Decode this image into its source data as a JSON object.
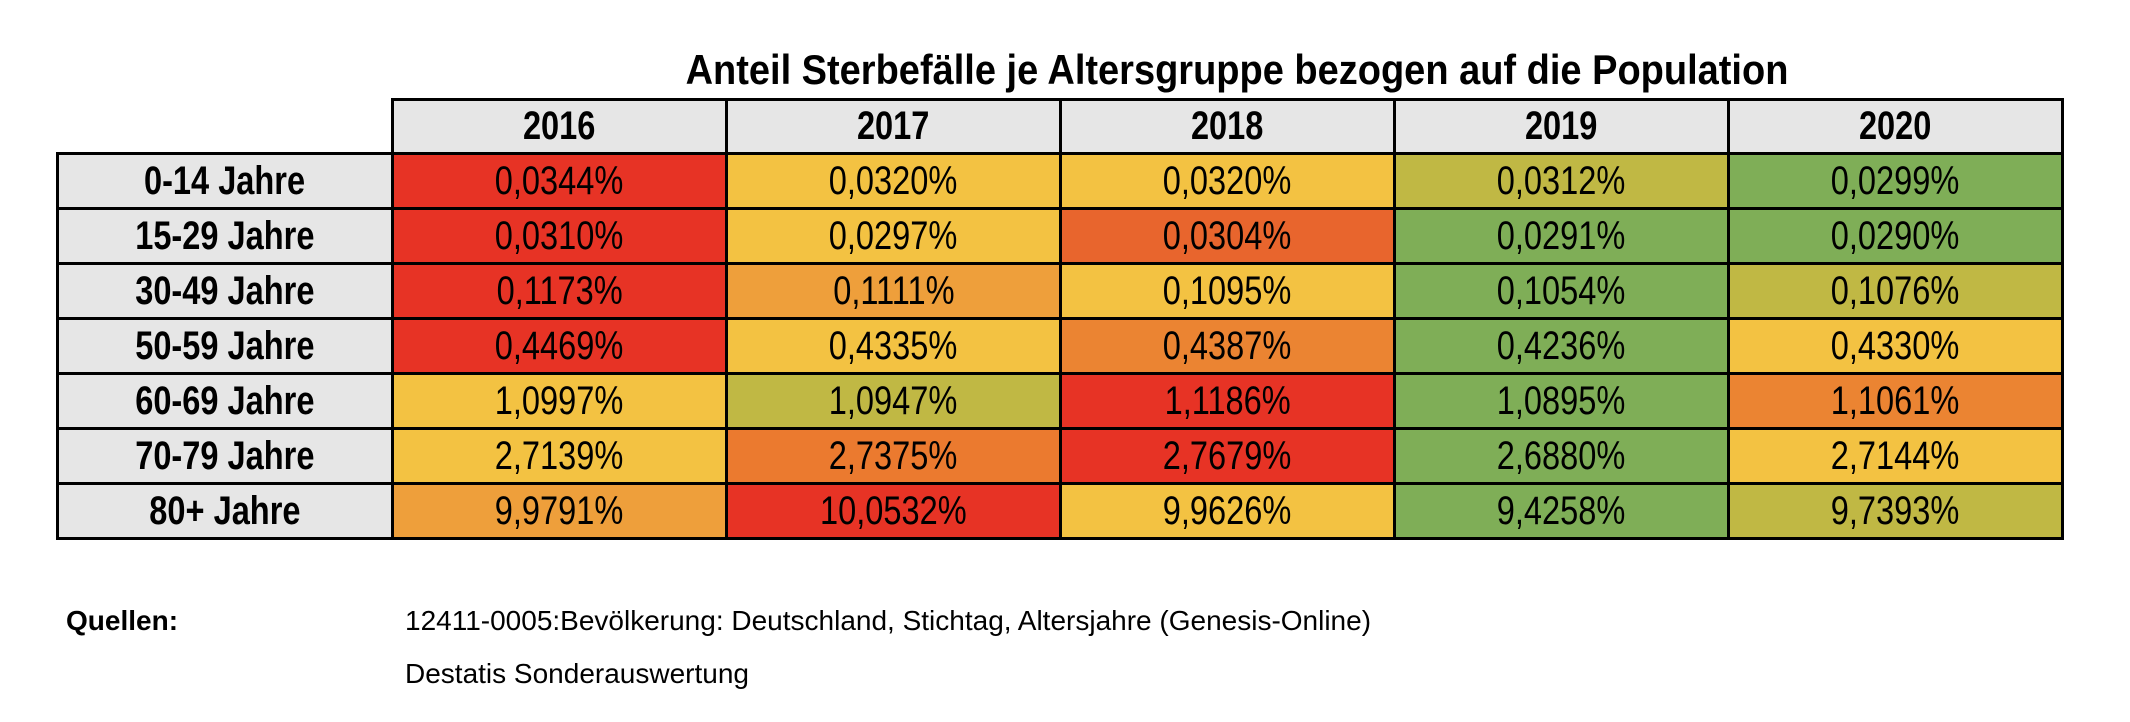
{
  "title": "Anteil Sterbefälle je Altersgruppe bezogen auf die Population",
  "colors": {
    "red": "#e73325",
    "orange": "#e9722e",
    "orange_mid": "#eb8432",
    "orange_light": "#ee9f3b",
    "yellow": "#f3c242",
    "olive": "#c0b844",
    "green": "#7fae57",
    "header": "#e6e6e6"
  },
  "chart_data": {
    "type": "table",
    "title": "Anteil Sterbefälle je Altersgruppe bezogen auf die Population",
    "columns": [
      "2016",
      "2017",
      "2018",
      "2019",
      "2020"
    ],
    "rows": [
      {
        "label": "0-14 Jahre",
        "values": [
          "0,0344%",
          "0,0320%",
          "0,0320%",
          "0,0312%",
          "0,0299%"
        ],
        "colors": [
          "#e73325",
          "#f3c242",
          "#f3c242",
          "#c0b844",
          "#7fae57"
        ]
      },
      {
        "label": "15-29 Jahre",
        "values": [
          "0,0310%",
          "0,0297%",
          "0,0304%",
          "0,0291%",
          "0,0290%"
        ],
        "colors": [
          "#e73325",
          "#f3c242",
          "#e8652d",
          "#7fae57",
          "#7fae57"
        ]
      },
      {
        "label": "30-49 Jahre",
        "values": [
          "0,1173%",
          "0,1111%",
          "0,1095%",
          "0,1054%",
          "0,1076%"
        ],
        "colors": [
          "#e73325",
          "#ee9f3b",
          "#f3c242",
          "#7fae57",
          "#c0b844"
        ]
      },
      {
        "label": "50-59 Jahre",
        "values": [
          "0,4469%",
          "0,4335%",
          "0,4387%",
          "0,4236%",
          "0,4330%"
        ],
        "colors": [
          "#e73325",
          "#f3c242",
          "#eb8432",
          "#7fae57",
          "#f3c242"
        ]
      },
      {
        "label": "60-69 Jahre",
        "values": [
          "1,0997%",
          "1,0947%",
          "1,1186%",
          "1,0895%",
          "1,1061%"
        ],
        "colors": [
          "#f3c242",
          "#c0b844",
          "#e73325",
          "#7fae57",
          "#eb8432"
        ]
      },
      {
        "label": "70-79 Jahre",
        "values": [
          "2,7139%",
          "2,7375%",
          "2,7679%",
          "2,6880%",
          "2,7144%"
        ],
        "colors": [
          "#f3c242",
          "#eb7a2f",
          "#e73325",
          "#7fae57",
          "#f3c242"
        ]
      },
      {
        "label": "80+ Jahre",
        "values": [
          "9,9791%",
          "10,0532%",
          "9,9626%",
          "9,4258%",
          "9,7393%"
        ],
        "colors": [
          "#ee9f3b",
          "#e73325",
          "#f3c242",
          "#7fae57",
          "#c0b844"
        ]
      }
    ]
  },
  "sources": {
    "label": "Quellen:",
    "items": [
      "12411-0005:Bevölkerung: Deutschland, Stichtag, Altersjahre (Genesis-Online)",
      "Destatis Sonderauswertung"
    ]
  }
}
